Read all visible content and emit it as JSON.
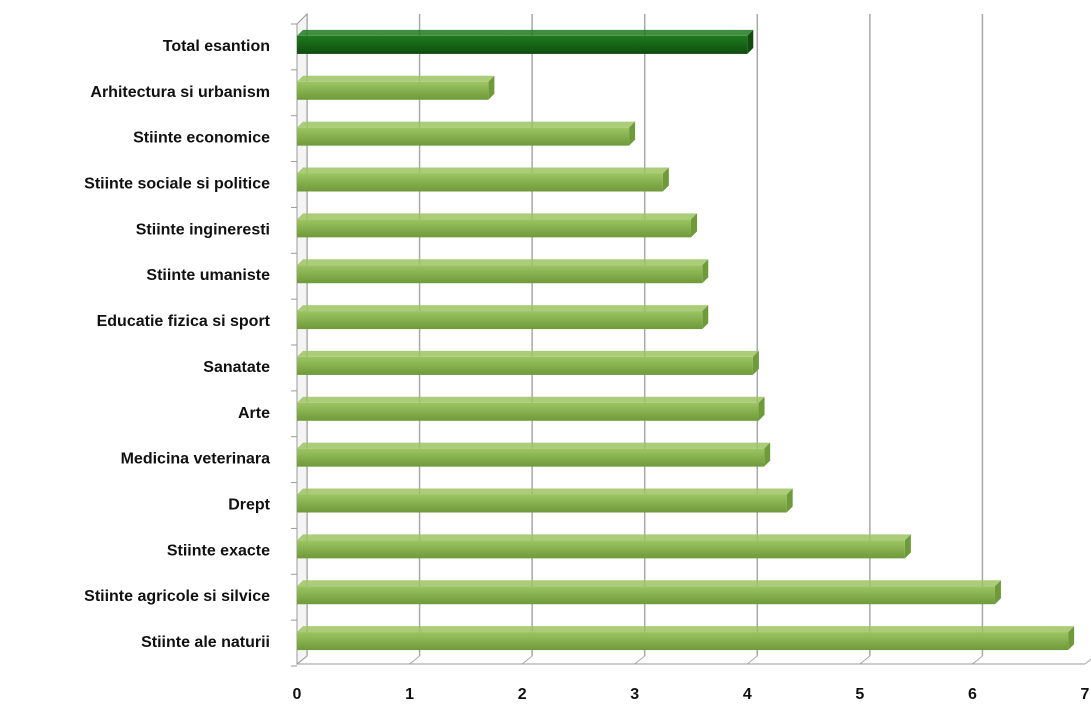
{
  "chart_data": {
    "type": "bar",
    "orientation": "horizontal",
    "title": "",
    "xlabel": "",
    "ylabel": "",
    "xlim": [
      0,
      7
    ],
    "x_ticks": [
      "0",
      "1",
      "2",
      "3",
      "4",
      "5",
      "6",
      "7"
    ],
    "grid": "vertical",
    "legend": "none",
    "categories": [
      "Total esantion",
      "Arhitectura si urbanism",
      "Stiinte economice",
      "Stiinte sociale  si politice",
      "Stiinte ingineresti",
      "Stiinte umaniste",
      "Educatie fizica si sport",
      "Sanatate",
      "Arte",
      "Medicina veterinara",
      "Drept",
      "Stiinte exacte",
      "Stiinte agricole  si silvice",
      "Stiinte ale naturii"
    ],
    "values": [
      4.0,
      1.7,
      2.95,
      3.25,
      3.5,
      3.6,
      3.6,
      4.05,
      4.1,
      4.15,
      4.35,
      5.4,
      6.2,
      6.85
    ],
    "colors": {
      "highlight": "#1e7a1e",
      "highlight_dark": "#0f4d0f",
      "bar": "#9cc462",
      "bar_dark": "#6f9a3a",
      "grid": "#a9a9a9"
    },
    "highlight_index": 0
  }
}
